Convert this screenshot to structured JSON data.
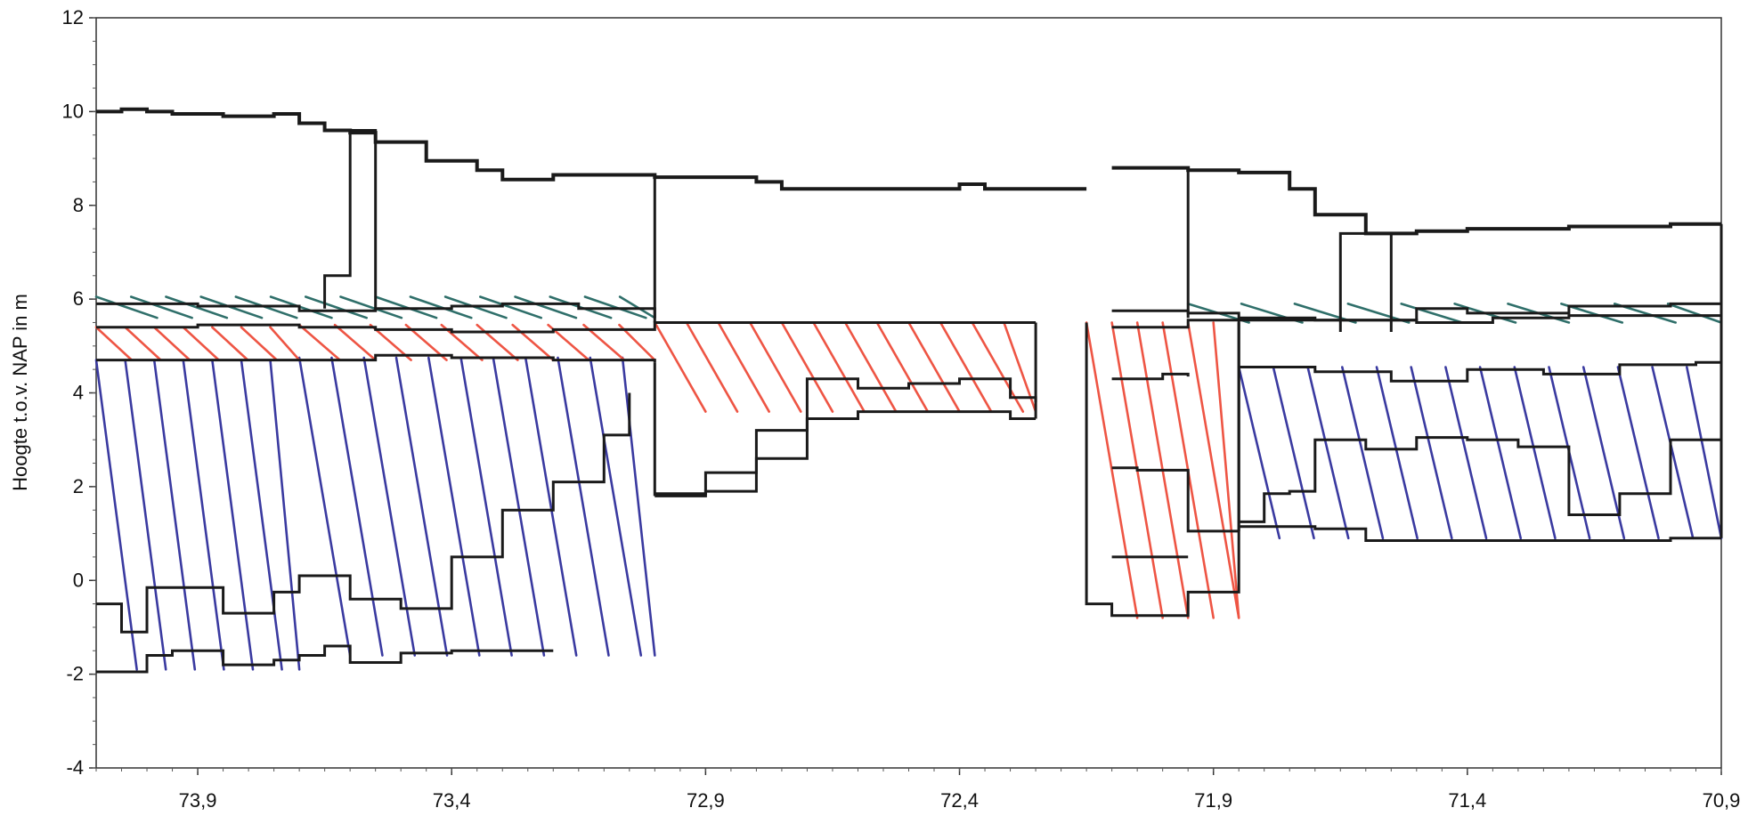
{
  "chart_data": {
    "type": "line",
    "title": "",
    "xlabel": "",
    "ylabel": "Hoogte t.o.v. NAP in m",
    "xlim": [
      74.1,
      70.9
    ],
    "ylim": [
      -4,
      12
    ],
    "x_reversed": true,
    "grid": false,
    "x_tick_labels": [
      "73,9",
      "73,4",
      "72,9",
      "72,4",
      "71,9",
      "71,4",
      "70,9"
    ],
    "x_ticks": [
      73.9,
      73.4,
      72.9,
      72.4,
      71.9,
      71.4,
      70.9
    ],
    "y_ticks": [
      -4,
      -2,
      0,
      2,
      4,
      6,
      8,
      10,
      12
    ],
    "y_tick_labels": [
      "-4",
      "-2",
      "0",
      "2",
      "4",
      "6",
      "8",
      "10",
      "12"
    ],
    "colors": {
      "outline": "#1a1a1a",
      "hatch_blue": "#3a3aa0",
      "hatch_red": "#ee5544",
      "hatch_teal": "#2f6f6a"
    },
    "series": [
      {
        "role": "outline",
        "style": "step",
        "width": 4,
        "x": [
          74.1,
          74.05,
          74.0,
          73.95,
          73.85,
          73.75,
          73.7,
          73.65,
          73.6,
          73.55,
          73.45,
          73.35,
          73.3,
          73.2,
          73.1,
          73.0,
          72.9,
          72.8,
          72.75,
          72.6,
          72.5,
          72.4,
          72.35,
          72.3,
          72.15
        ],
        "y": [
          10.0,
          10.05,
          10.0,
          9.95,
          9.9,
          9.95,
          9.75,
          9.6,
          9.55,
          9.35,
          8.95,
          8.75,
          8.55,
          8.65,
          8.65,
          8.6,
          8.6,
          8.5,
          8.35,
          8.35,
          8.35,
          8.45,
          8.35,
          8.35,
          8.35
        ]
      },
      {
        "role": "outline",
        "style": "step",
        "width": 4,
        "x": [
          72.1,
          71.95,
          71.85,
          71.75,
          71.7,
          71.6,
          71.5,
          71.4,
          71.2,
          71.0,
          70.9
        ],
        "y": [
          8.8,
          8.75,
          8.7,
          8.35,
          7.8,
          7.4,
          7.45,
          7.5,
          7.55,
          7.6,
          7.6
        ]
      },
      {
        "role": "outline",
        "style": "polyline",
        "width": 3,
        "x": [
          73.65,
          73.65,
          73.6,
          73.6,
          73.55,
          73.55
        ],
        "y": [
          5.8,
          6.5,
          6.5,
          9.6,
          9.6,
          5.8
        ]
      },
      {
        "role": "outline",
        "style": "polyline",
        "width": 3,
        "x": [
          73.0,
          73.0
        ],
        "y": [
          8.65,
          5.5
        ]
      },
      {
        "role": "outline",
        "style": "polyline",
        "width": 3,
        "x": [
          71.65,
          71.65,
          71.55,
          71.55
        ],
        "y": [
          5.3,
          7.4,
          7.4,
          5.3
        ]
      },
      {
        "role": "outline",
        "style": "polyline",
        "width": 3,
        "x": [
          71.95,
          71.95
        ],
        "y": [
          8.75,
          5.6
        ]
      },
      {
        "role": "outline",
        "style": "step",
        "width": 3,
        "x": [
          74.1,
          73.9,
          73.7,
          73.55,
          73.4,
          73.3,
          73.15,
          73.0
        ],
        "y": [
          5.9,
          5.85,
          5.75,
          5.8,
          5.85,
          5.9,
          5.8,
          5.6
        ]
      },
      {
        "role": "outline",
        "style": "step",
        "width": 3,
        "x": [
          74.1,
          73.9,
          73.7,
          73.55,
          73.4,
          73.2,
          73.0,
          72.8,
          72.6,
          72.4,
          72.25
        ],
        "y": [
          5.4,
          5.45,
          5.4,
          5.35,
          5.3,
          5.35,
          5.5,
          5.5,
          5.5,
          5.5,
          5.5
        ]
      },
      {
        "role": "outline",
        "style": "step",
        "width": 3,
        "x": [
          74.1,
          73.9,
          73.7,
          73.55,
          73.4,
          73.2,
          73.0
        ],
        "y": [
          4.7,
          4.7,
          4.7,
          4.8,
          4.75,
          4.7,
          4.65
        ]
      },
      {
        "role": "outline",
        "style": "step",
        "width": 3,
        "x": [
          74.1,
          74.05,
          74.0,
          73.95,
          73.85,
          73.75,
          73.7,
          73.6,
          73.5,
          73.4,
          73.3,
          73.2,
          73.1,
          73.05
        ],
        "y": [
          -0.5,
          -1.1,
          -0.15,
          -0.15,
          -0.7,
          -0.25,
          0.1,
          -0.4,
          -0.6,
          0.5,
          1.5,
          2.1,
          3.1,
          4.0
        ]
      },
      {
        "role": "outline",
        "style": "step",
        "width": 3,
        "x": [
          74.1,
          74.05,
          74.0,
          73.95,
          73.85,
          73.75,
          73.7,
          73.65,
          73.6,
          73.5,
          73.45,
          73.4,
          73.3,
          73.2
        ],
        "y": [
          -1.95,
          -1.95,
          -1.6,
          -1.5,
          -1.8,
          -1.7,
          -1.6,
          -1.4,
          -1.75,
          -1.55,
          -1.55,
          -1.5,
          -1.5,
          -1.5
        ]
      },
      {
        "role": "outline",
        "style": "step",
        "width": 3,
        "x": [
          73.0,
          72.9,
          72.8,
          72.7,
          72.6,
          72.5,
          72.4,
          72.3,
          72.25
        ],
        "y": [
          1.8,
          2.3,
          3.2,
          4.3,
          4.1,
          4.2,
          4.3,
          3.9,
          3.8
        ]
      },
      {
        "role": "outline",
        "style": "step",
        "width": 3,
        "x": [
          73.0,
          72.9,
          72.8,
          72.7,
          72.6,
          72.5,
          72.4,
          72.3,
          72.25
        ],
        "y": [
          1.85,
          1.9,
          2.6,
          3.45,
          3.6,
          3.6,
          3.6,
          3.45,
          3.45
        ]
      },
      {
        "role": "outline",
        "style": "polyline",
        "width": 3,
        "x": [
          73.0,
          73.0
        ],
        "y": [
          4.65,
          1.8
        ]
      },
      {
        "role": "outline",
        "style": "polyline",
        "width": 3,
        "x": [
          72.25,
          72.25
        ],
        "y": [
          5.5,
          3.45
        ]
      },
      {
        "role": "outline",
        "style": "step",
        "width": 3,
        "x": [
          72.1,
          72.0,
          71.95,
          71.85,
          71.7,
          71.5,
          71.4,
          71.2,
          71.0,
          70.9
        ],
        "y": [
          5.75,
          5.75,
          5.7,
          5.6,
          5.55,
          5.8,
          5.7,
          5.85,
          5.9,
          5.9
        ]
      },
      {
        "role": "outline",
        "style": "step",
        "width": 3,
        "x": [
          72.1,
          71.95,
          71.85,
          71.7,
          71.5,
          71.35,
          71.2,
          71.0,
          70.9
        ],
        "y": [
          5.4,
          5.55,
          5.55,
          5.55,
          5.5,
          5.6,
          5.65,
          5.65,
          5.65
        ]
      },
      {
        "role": "outline",
        "style": "step",
        "width": 3,
        "x": [
          71.85,
          71.7,
          71.55,
          71.4,
          71.25,
          71.1,
          70.95,
          70.9
        ],
        "y": [
          4.55,
          4.45,
          4.25,
          4.5,
          4.4,
          4.6,
          4.65,
          4.65
        ]
      },
      {
        "role": "outline",
        "style": "step",
        "width": 3,
        "x": [
          71.85,
          71.8,
          71.75,
          71.7,
          71.6,
          71.5,
          71.4,
          71.3,
          71.2,
          71.1,
          71.0,
          70.9
        ],
        "y": [
          1.25,
          1.85,
          1.9,
          3.0,
          2.8,
          3.05,
          3.0,
          2.85,
          1.4,
          1.85,
          3.0,
          3.0
        ]
      },
      {
        "role": "outline",
        "style": "step",
        "width": 3,
        "x": [
          71.85,
          71.8,
          71.7,
          71.6,
          71.5,
          71.4,
          71.3,
          71.2,
          71.1,
          71.0,
          70.9
        ],
        "y": [
          1.15,
          1.15,
          1.1,
          0.85,
          0.85,
          0.85,
          0.85,
          0.85,
          0.85,
          0.9,
          0.9
        ]
      },
      {
        "role": "outline",
        "style": "polyline",
        "width": 3,
        "x": [
          72.15,
          72.15,
          72.1,
          72.1,
          71.95,
          71.95,
          71.85,
          71.85
        ],
        "y": [
          5.5,
          -0.5,
          -0.5,
          -0.75,
          -0.75,
          -0.25,
          -0.25,
          5.5
        ]
      },
      {
        "role": "outline",
        "style": "step",
        "width": 3,
        "x": [
          72.1,
          72.0,
          71.95
        ],
        "y": [
          4.3,
          4.4,
          4.35
        ]
      },
      {
        "role": "outline",
        "style": "step",
        "width": 3,
        "x": [
          72.1,
          72.05,
          71.95,
          71.85
        ],
        "y": [
          2.4,
          2.35,
          1.05,
          1.05
        ]
      },
      {
        "role": "outline",
        "style": "step",
        "width": 3,
        "x": [
          72.1,
          72.05,
          71.95
        ],
        "y": [
          0.5,
          0.5,
          0.5
        ]
      },
      {
        "role": "outline",
        "style": "polyline",
        "width": 3,
        "x": [
          71.85,
          71.85
        ],
        "y": [
          5.55,
          1.05
        ]
      },
      {
        "role": "outline",
        "style": "polyline",
        "width": 3,
        "x": [
          70.9,
          70.9
        ],
        "y": [
          7.6,
          0.9
        ]
      }
    ],
    "hatch_groups": [
      {
        "role": "hatch_blue",
        "x0": 74.1,
        "x1": 73.7,
        "ytop": 4.7,
        "ybot": -1.9,
        "count": 7,
        "slant": 0.08
      },
      {
        "role": "hatch_blue",
        "x0": 73.7,
        "x1": 73.0,
        "ytop": 4.75,
        "ybot": -1.6,
        "count": 11,
        "slant": 0.1
      },
      {
        "role": "hatch_blue",
        "x0": 71.85,
        "x1": 70.9,
        "ytop": 4.55,
        "ybot": 0.9,
        "count": 14,
        "slant": 0.08
      },
      {
        "role": "hatch_red",
        "x0": 74.1,
        "x1": 73.7,
        "ytop": 5.4,
        "ybot": 4.7,
        "count": 7,
        "slant": 0.07
      },
      {
        "role": "hatch_red",
        "x0": 73.7,
        "x1": 73.0,
        "ytop": 5.45,
        "ybot": 4.7,
        "count": 10,
        "slant": 0.08
      },
      {
        "role": "hatch_red",
        "x0": 73.0,
        "x1": 72.25,
        "ytop": 5.5,
        "ybot": 3.6,
        "count": 12,
        "slant": 0.1
      },
      {
        "role": "hatch_red",
        "x0": 72.15,
        "x1": 71.85,
        "ytop": 5.5,
        "ybot": -0.8,
        "count": 6,
        "slant": 0.1
      },
      {
        "role": "hatch_teal",
        "x0": 74.1,
        "x1": 73.0,
        "ytop": 6.05,
        "ybot": 5.6,
        "count": 16,
        "slant": 0.12
      },
      {
        "role": "hatch_teal",
        "x0": 71.95,
        "x1": 70.9,
        "ytop": 5.9,
        "ybot": 5.5,
        "count": 10,
        "slant": 0.12
      }
    ]
  }
}
